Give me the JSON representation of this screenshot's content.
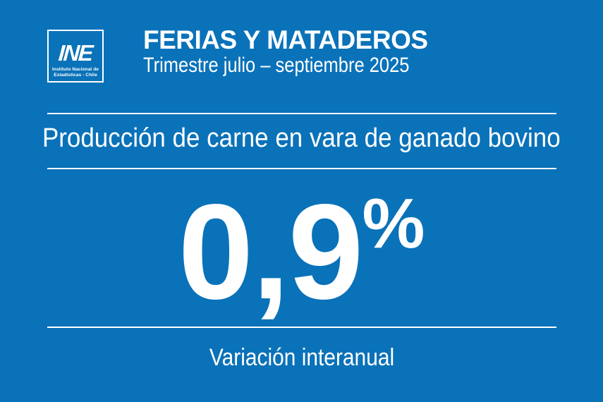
{
  "colors": {
    "background": "#0A72B9",
    "text": "#FFFFFF"
  },
  "logo": {
    "mark": "INE",
    "institution_line1": "Instituto Nacional de",
    "institution_line2": "Estadísticas - Chile"
  },
  "header": {
    "title": "FERIAS Y MATADEROS",
    "subtitle": "Trimestre julio – septiembre 2025"
  },
  "indicator": {
    "label": "Producción de carne en vara de ganado bovino",
    "value": "0,9",
    "unit": "%",
    "caption": "Variación interanual"
  },
  "chart_data": {
    "type": "table",
    "title": "FERIAS Y MATADEROS",
    "period": "Trimestre julio – septiembre 2025",
    "metric": "Producción de carne en vara de ganado bovino",
    "measure": "Variación interanual",
    "value_percent": 0.9,
    "value_label": "0,9%"
  }
}
